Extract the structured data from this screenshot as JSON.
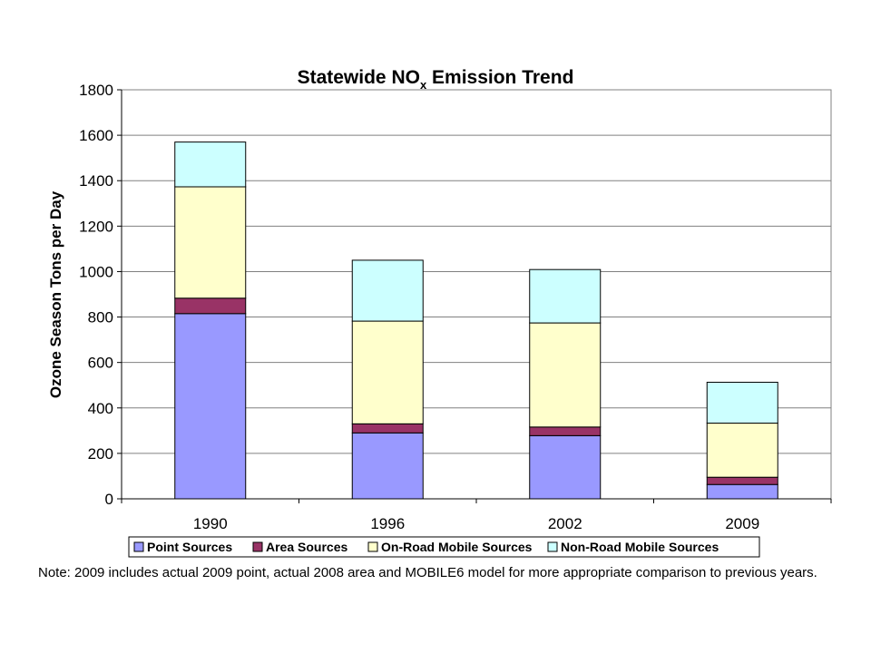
{
  "chart_data": {
    "type": "bar",
    "stacked": true,
    "title_main": "Statewide NO",
    "title_sub": "x",
    "title_rest": " Emission Trend",
    "ylabel": "Ozone Season Tons per Day",
    "xlabel": "",
    "ylim": [
      0,
      1800
    ],
    "yticks": [
      0,
      200,
      400,
      600,
      800,
      1000,
      1200,
      1400,
      1600,
      1800
    ],
    "grid": true,
    "legend_position": "bottom",
    "categories": [
      "1990",
      "1996",
      "2002",
      "2009"
    ],
    "series": [
      {
        "name": "Point Sources",
        "color": "#9999FF",
        "values": [
          815,
          290,
          278,
          63
        ]
      },
      {
        "name": "Area Sources",
        "color": "#993366",
        "values": [
          68,
          40,
          38,
          32
        ]
      },
      {
        "name": "On-Road Mobile Sources",
        "color": "#FFFFCC",
        "values": [
          490,
          452,
          458,
          238
        ]
      },
      {
        "name": "Non-Road Mobile Sources",
        "color": "#CCFFFF",
        "values": [
          197,
          268,
          235,
          180
        ]
      }
    ]
  },
  "note": "Note:  2009  includes actual 2009 point, actual 2008 area and  MOBILE6 model for more appropriate comparison to previous years."
}
